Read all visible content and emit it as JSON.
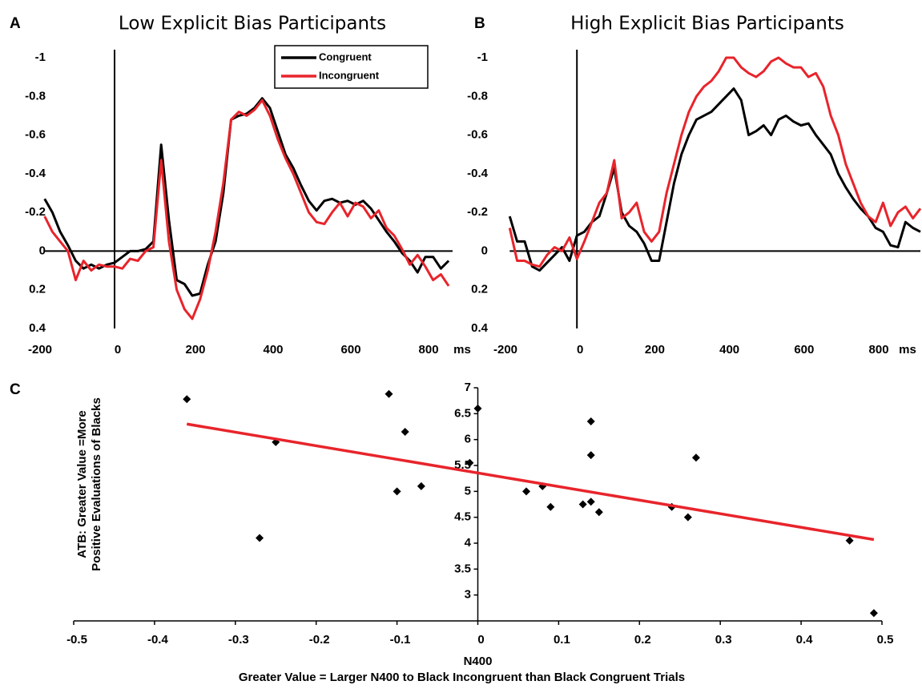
{
  "chart_data": [
    {
      "type": "line",
      "panel": "A",
      "title": "Low Explicit Bias Participants",
      "xlabel": "ms",
      "legend": "top-right",
      "xlim": [
        -200,
        870
      ],
      "xticks": [
        -200,
        0,
        200,
        400,
        600,
        800
      ],
      "ylim": [
        0.4,
        -1
      ],
      "yticks": [
        -1,
        -0.8,
        -0.6,
        -0.4,
        -0.2,
        0,
        0.2,
        0.4
      ],
      "x": [
        -180,
        -160,
        -140,
        -120,
        -100,
        -80,
        -60,
        -40,
        -20,
        0,
        20,
        40,
        60,
        80,
        100,
        120,
        140,
        160,
        180,
        200,
        220,
        240,
        260,
        280,
        300,
        320,
        340,
        360,
        380,
        400,
        420,
        440,
        460,
        480,
        500,
        520,
        540,
        560,
        580,
        600,
        620,
        640,
        660,
        680,
        700,
        720,
        740,
        760,
        780,
        800,
        820,
        840,
        860
      ],
      "series": [
        {
          "name": "Congruent",
          "color": "#000000",
          "values": [
            -0.27,
            -0.2,
            -0.1,
            -0.03,
            0.05,
            0.09,
            0.07,
            0.09,
            0.07,
            0.06,
            0.03,
            0,
            0,
            -0.01,
            -0.05,
            -0.55,
            -0.16,
            0.15,
            0.17,
            0.23,
            0.22,
            0.07,
            -0.05,
            -0.3,
            -0.68,
            -0.7,
            -0.71,
            -0.74,
            -0.79,
            -0.74,
            -0.62,
            -0.5,
            -0.43,
            -0.34,
            -0.26,
            -0.21,
            -0.26,
            -0.27,
            -0.25,
            -0.26,
            -0.24,
            -0.26,
            -0.22,
            -0.16,
            -0.1,
            -0.05,
            0.01,
            0.05,
            0.11,
            0.03,
            0.03,
            0.09,
            0.05
          ]
        },
        {
          "name": "Incongruent",
          "color": "#e8242b",
          "values": [
            -0.18,
            -0.1,
            -0.05,
            0,
            0.15,
            0.05,
            0.1,
            0.07,
            0.08,
            0.08,
            0.09,
            0.04,
            0.05,
            0,
            -0.02,
            -0.47,
            -0.05,
            0.2,
            0.3,
            0.35,
            0.25,
            0.1,
            -0.1,
            -0.35,
            -0.68,
            -0.72,
            -0.7,
            -0.73,
            -0.78,
            -0.7,
            -0.58,
            -0.48,
            -0.4,
            -0.3,
            -0.2,
            -0.15,
            -0.14,
            -0.2,
            -0.25,
            -0.18,
            -0.25,
            -0.23,
            -0.17,
            -0.21,
            -0.12,
            -0.08,
            -0.01,
            0.07,
            0.02,
            0.08,
            0.15,
            0.12,
            0.18
          ]
        }
      ]
    },
    {
      "type": "line",
      "panel": "B",
      "title": "High Explicit Bias Participants",
      "xlabel": "ms",
      "legend": false,
      "xlim": [
        -200,
        920
      ],
      "xticks": [
        -200,
        0,
        200,
        400,
        600,
        800
      ],
      "ylim": [
        0.4,
        -1
      ],
      "yticks": [
        -1,
        -0.8,
        -0.6,
        -0.4,
        -0.2,
        0,
        0.2,
        0.4
      ],
      "x": [
        -180,
        -160,
        -140,
        -120,
        -100,
        -80,
        -60,
        -40,
        -20,
        0,
        20,
        40,
        60,
        80,
        100,
        120,
        140,
        160,
        180,
        200,
        220,
        240,
        260,
        280,
        300,
        320,
        340,
        360,
        380,
        400,
        420,
        440,
        460,
        480,
        500,
        520,
        540,
        560,
        580,
        600,
        620,
        640,
        660,
        680,
        700,
        720,
        740,
        760,
        780,
        800,
        820,
        840,
        860,
        880,
        900,
        920
      ],
      "series": [
        {
          "name": "Congruent",
          "color": "#000000",
          "values": [
            -0.18,
            -0.05,
            -0.05,
            0.08,
            0.1,
            0.06,
            0.02,
            -0.02,
            0.05,
            -0.08,
            -0.1,
            -0.15,
            -0.18,
            -0.3,
            -0.43,
            -0.2,
            -0.13,
            -0.1,
            -0.04,
            0.05,
            0.05,
            -0.15,
            -0.35,
            -0.5,
            -0.6,
            -0.68,
            -0.7,
            -0.72,
            -0.76,
            -0.8,
            -0.84,
            -0.78,
            -0.6,
            -0.62,
            -0.65,
            -0.6,
            -0.68,
            -0.7,
            -0.67,
            -0.65,
            -0.66,
            -0.6,
            -0.55,
            -0.5,
            -0.4,
            -0.33,
            -0.27,
            -0.22,
            -0.18,
            -0.12,
            -0.1,
            -0.03,
            -0.02,
            -0.15,
            -0.12,
            -0.1
          ]
        },
        {
          "name": "Incongruent",
          "color": "#e8242b",
          "values": [
            -0.12,
            0.05,
            0.05,
            0.07,
            0.08,
            0.02,
            -0.02,
            0,
            -0.07,
            0.04,
            -0.05,
            -0.15,
            -0.25,
            -0.3,
            -0.47,
            -0.17,
            -0.2,
            -0.25,
            -0.1,
            -0.05,
            -0.1,
            -0.3,
            -0.45,
            -0.6,
            -0.72,
            -0.8,
            -0.85,
            -0.88,
            -0.93,
            -1.0,
            -1.0,
            -0.95,
            -0.92,
            -0.9,
            -0.93,
            -0.98,
            -1.0,
            -0.97,
            -0.95,
            -0.95,
            -0.9,
            -0.92,
            -0.85,
            -0.7,
            -0.6,
            -0.45,
            -0.35,
            -0.25,
            -0.18,
            -0.15,
            -0.25,
            -0.13,
            -0.2,
            -0.23,
            -0.17,
            -0.22
          ]
        }
      ]
    },
    {
      "type": "scatter",
      "panel": "C",
      "xlabel": [
        "N400",
        "Greater Value = Larger N400 to Black Incongruent than Black Congruent Trials"
      ],
      "ylabel": [
        "ATB: Greater Value =More",
        "Positive Evaluations of Blacks"
      ],
      "xlim": [
        -0.5,
        0.5
      ],
      "xticks": [
        -0.5,
        -0.4,
        -0.3,
        -0.2,
        -0.1,
        0,
        0.1,
        0.2,
        0.3,
        0.4,
        0.5
      ],
      "ylim": [
        2.5,
        7
      ],
      "yticks": [
        3,
        3.5,
        4,
        4.5,
        5,
        5.5,
        6,
        6.5,
        7
      ],
      "color": "#000000",
      "x": [
        -0.36,
        -0.25,
        -0.27,
        -0.11,
        -0.09,
        -0.1,
        -0.07,
        0,
        -0.01,
        0.06,
        0.08,
        0.09,
        0.13,
        0.14,
        0.14,
        0.14,
        0.15,
        0.24,
        0.26,
        0.27,
        0.46,
        0.49
      ],
      "values": [
        6.78,
        5.95,
        4.1,
        6.88,
        6.15,
        5.0,
        5.1,
        6.6,
        5.55,
        5.0,
        5.1,
        4.7,
        4.75,
        4.8,
        6.35,
        5.7,
        4.6,
        4.7,
        4.5,
        5.65,
        4.05,
        2.65
      ],
      "trendline": {
        "color": "#e8242b",
        "x": [
          -0.36,
          0.49
        ],
        "values": [
          6.3,
          4.07
        ]
      }
    }
  ]
}
